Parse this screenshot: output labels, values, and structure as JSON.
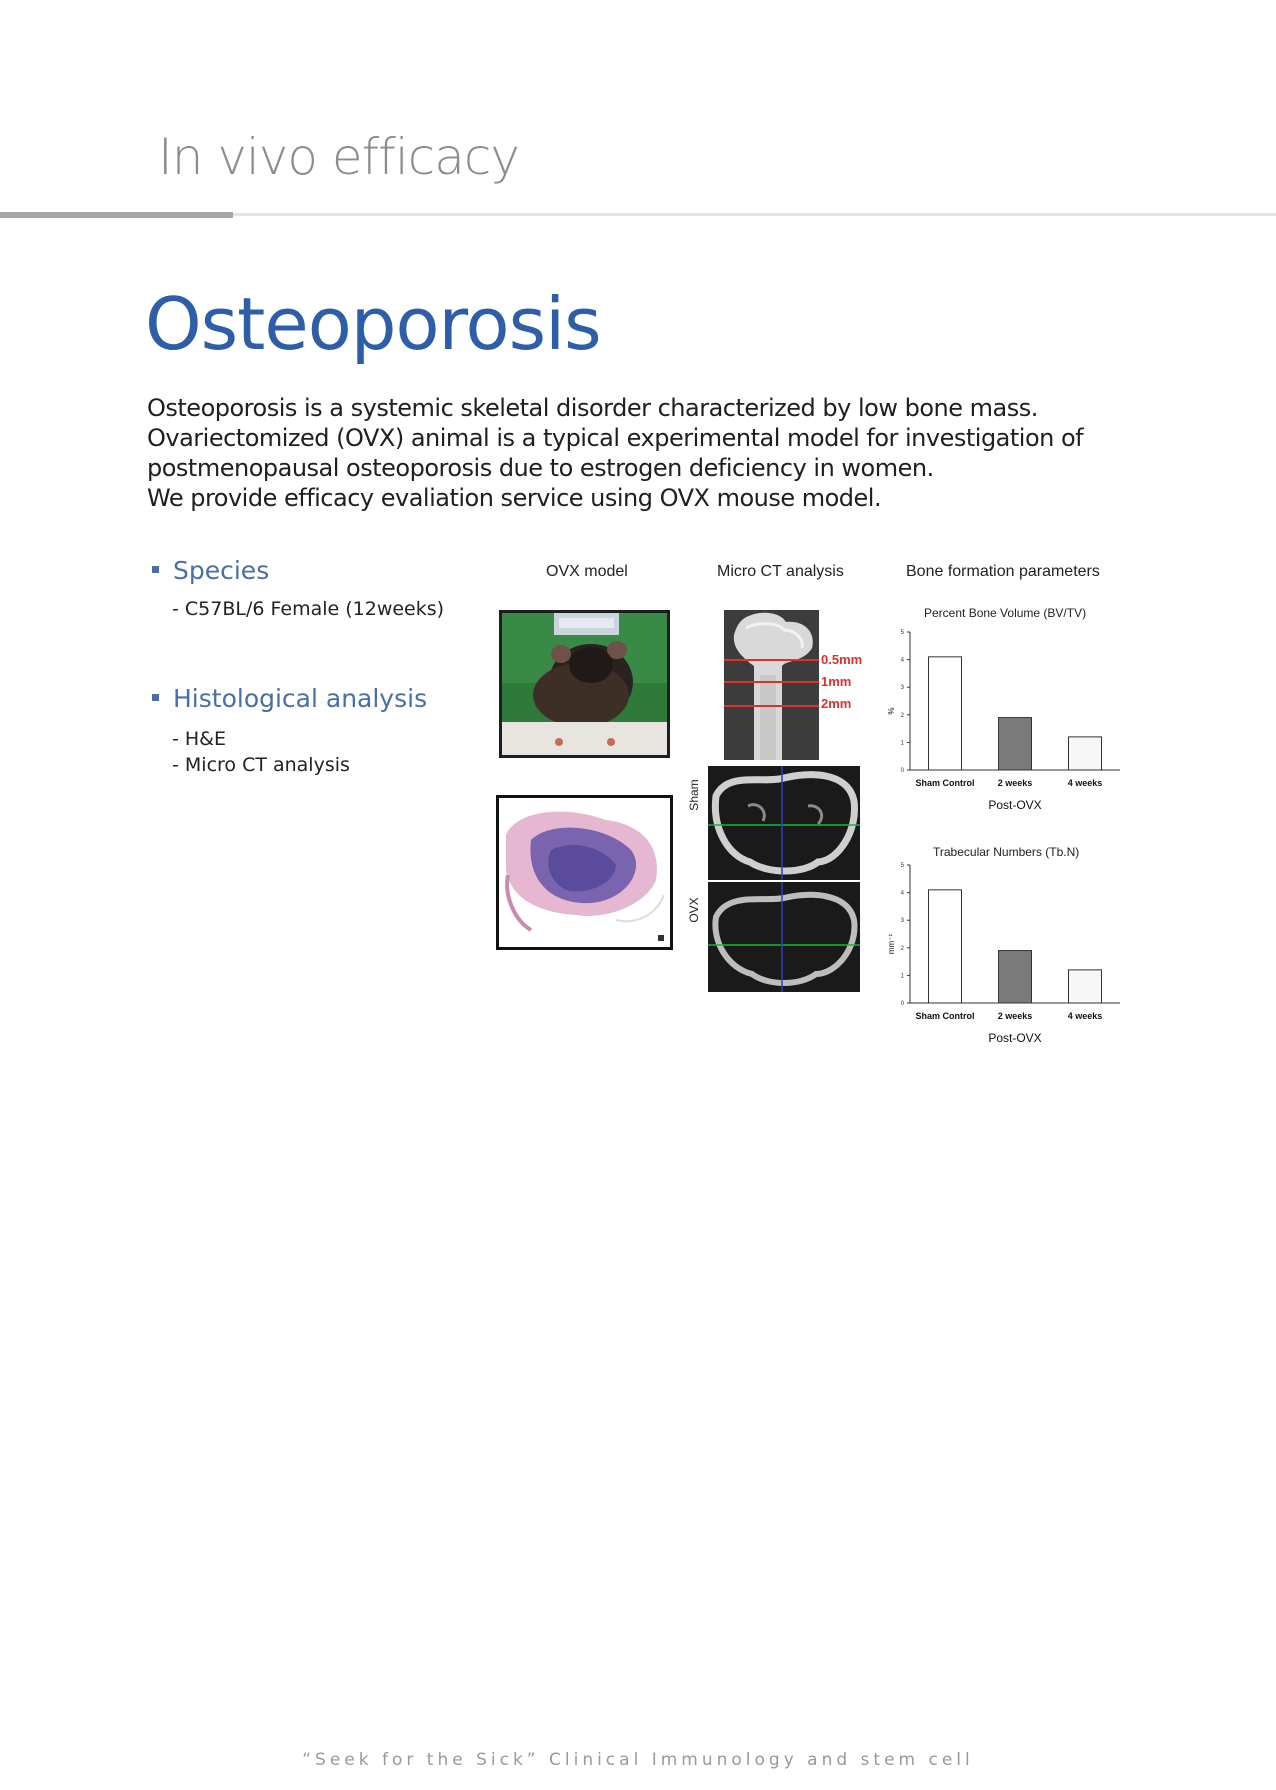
{
  "header": {
    "section": "In vivo efficacy"
  },
  "page": {
    "title": "Osteoporosis",
    "intro": [
      "Osteoporosis is a systemic skeletal disorder characterized by low bone mass.",
      "Ovariectomized (OVX) animal is a typical experimental model for investigation of",
      "postmenopausal osteoporosis due to estrogen deficiency in women.",
      "We provide efficacy evaliation service using OVX mouse model."
    ]
  },
  "species": {
    "heading": "Species",
    "items": [
      "- C57BL/6 Female (12weeks)"
    ]
  },
  "histology": {
    "heading": "Histological analysis",
    "items": [
      "- H&E",
      "- Micro CT analysis"
    ]
  },
  "figure": {
    "ovx_heading": "OVX model",
    "microct_heading": "Micro CT analysis",
    "bone_heading": "Bone formation parameters",
    "ct_marks": [
      "0.5mm",
      "1mm",
      "2mm"
    ],
    "ct_group_labels": [
      "Sham",
      "OVX"
    ],
    "colors": {
      "mark_red": "#e0302a",
      "title_blue": "#2f5ea8"
    }
  },
  "chart_data": [
    {
      "type": "bar",
      "title": "Percent Bone Volume (BV/TV)",
      "categories": [
        "Sham Control",
        "2 weeks",
        "4 weeks"
      ],
      "values": [
        4.1,
        1.9,
        1.2
      ],
      "ylabel": "%",
      "xlabel": "Post-OVX",
      "ylim": [
        0,
        5
      ],
      "yticks": [
        "0",
        "1",
        "2",
        "3",
        "4",
        "5"
      ],
      "colors": [
        "#ffffff",
        "#7a7a7a",
        "#f7f7f7"
      ]
    },
    {
      "type": "bar",
      "title": "Trabecular Numbers (Tb.N)",
      "categories": [
        "Sham Control",
        "2 weeks",
        "4 weeks"
      ],
      "values": [
        4.1,
        1.9,
        1.2
      ],
      "ylabel": "mm⁻¹",
      "xlabel": "Post-OVX",
      "ylim": [
        0,
        5
      ],
      "yticks": [
        "0",
        "1",
        "2",
        "3",
        "4",
        "5"
      ],
      "colors": [
        "#ffffff",
        "#7a7a7a",
        "#f7f7f7"
      ]
    }
  ],
  "footer": {
    "text": "“Seek for the Sick” Clinical Immunology and stem cell"
  }
}
